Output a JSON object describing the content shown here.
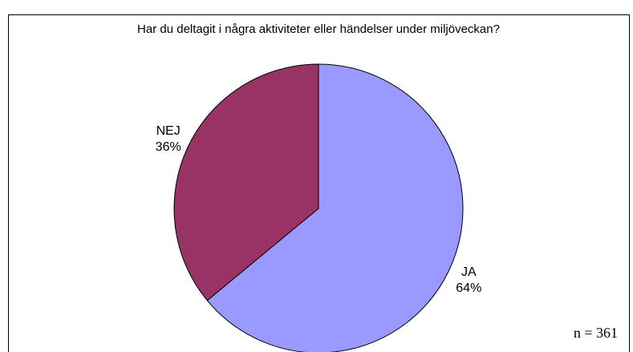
{
  "chart_data": {
    "type": "pie",
    "title": "Har du deltagit i några aktiviteter eller händelser under miljöveckan?",
    "categories": [
      "JA",
      "NEJ"
    ],
    "values": [
      64,
      36
    ],
    "value_labels": [
      "64%",
      "36%"
    ],
    "colors": [
      "#9999ff",
      "#993366"
    ],
    "annotation": "n = 361"
  }
}
